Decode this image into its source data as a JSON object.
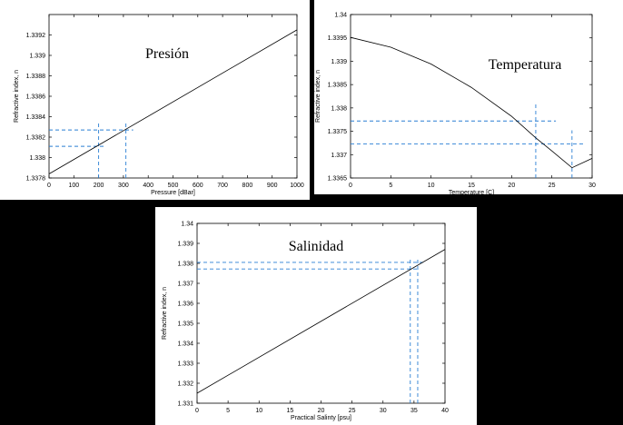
{
  "chart_data": [
    {
      "type": "line",
      "title": "Presión",
      "xlabel": "Pressure [dBar]",
      "ylabel": "Refractive index, n",
      "xlim": [
        0,
        1000
      ],
      "ylim": [
        1.3378,
        1.3394
      ],
      "x_ticks": [
        0,
        100,
        200,
        300,
        400,
        500,
        600,
        700,
        800,
        900,
        1000
      ],
      "y_ticks": [
        1.3378,
        1.338,
        1.3382,
        1.3384,
        1.3386,
        1.3388,
        1.339,
        1.3392
      ],
      "y_tick_labels": [
        "1.3378",
        "1.338",
        "1.3382",
        "1.3384",
        "1.3386",
        "1.3388",
        "1.339",
        "1.3392"
      ],
      "grid": false,
      "series": [
        {
          "x": [
            0,
            1000
          ],
          "y": [
            1.33784,
            1.33925
          ]
        }
      ],
      "reference_lines": [
        {
          "x": 200,
          "y": 1.33811,
          "y_top": 1.33834
        },
        {
          "x": 310,
          "y": 1.33827,
          "y_top": 1.33834
        }
      ]
    },
    {
      "type": "line",
      "title": "Temperatura",
      "xlabel": "Temperature [C]",
      "ylabel": "Refractive index, n",
      "xlim": [
        0,
        30
      ],
      "ylim": [
        1.3365,
        1.34
      ],
      "x_ticks": [
        0,
        5,
        10,
        15,
        20,
        25,
        30
      ],
      "y_ticks": [
        1.3365,
        1.337,
        1.3375,
        1.338,
        1.3385,
        1.339,
        1.3395,
        1.34
      ],
      "y_tick_labels": [
        "1.3365",
        "1.337",
        "1.3375",
        "1.338",
        "1.3385",
        "1.339",
        "1.3395",
        "1.34"
      ],
      "grid": false,
      "series": [
        {
          "x": [
            0,
            5,
            10,
            15,
            20,
            23,
            25,
            27.5,
            30
          ],
          "y": [
            1.33951,
            1.3393,
            1.33894,
            1.33844,
            1.33782,
            1.33736,
            1.33708,
            1.33672,
            1.33692
          ]
        }
      ],
      "reference_lines": [
        {
          "x": 23,
          "y": 1.33772,
          "y_top": 1.33808,
          "x_end": 25.5
        },
        {
          "x": 27.5,
          "y": 1.33723,
          "y_top": 1.33752,
          "x_end": 29
        }
      ]
    },
    {
      "type": "line",
      "title": "Salinidad",
      "xlabel": "Practical Salinty [psu]",
      "ylabel": "Refractive index, n",
      "xlim": [
        0,
        40
      ],
      "ylim": [
        1.331,
        1.34
      ],
      "x_ticks": [
        0,
        5,
        10,
        15,
        20,
        25,
        30,
        35,
        40
      ],
      "y_ticks": [
        1.331,
        1.332,
        1.333,
        1.334,
        1.335,
        1.336,
        1.337,
        1.338,
        1.339,
        1.34
      ],
      "y_tick_labels": [
        "1.331",
        "1.332",
        "1.333",
        "1.334",
        "1.335",
        "1.336",
        "1.337",
        "1.338",
        "1.339",
        "1.34"
      ],
      "grid": false,
      "series": [
        {
          "x": [
            0,
            40
          ],
          "y": [
            1.3315,
            1.3387
          ]
        }
      ],
      "reference_lines": [
        {
          "x": 34.4,
          "y": 1.33772,
          "y_top": 1.3383
        },
        {
          "x": 35.6,
          "y": 1.33805,
          "y_top": 1.3383
        }
      ]
    }
  ]
}
